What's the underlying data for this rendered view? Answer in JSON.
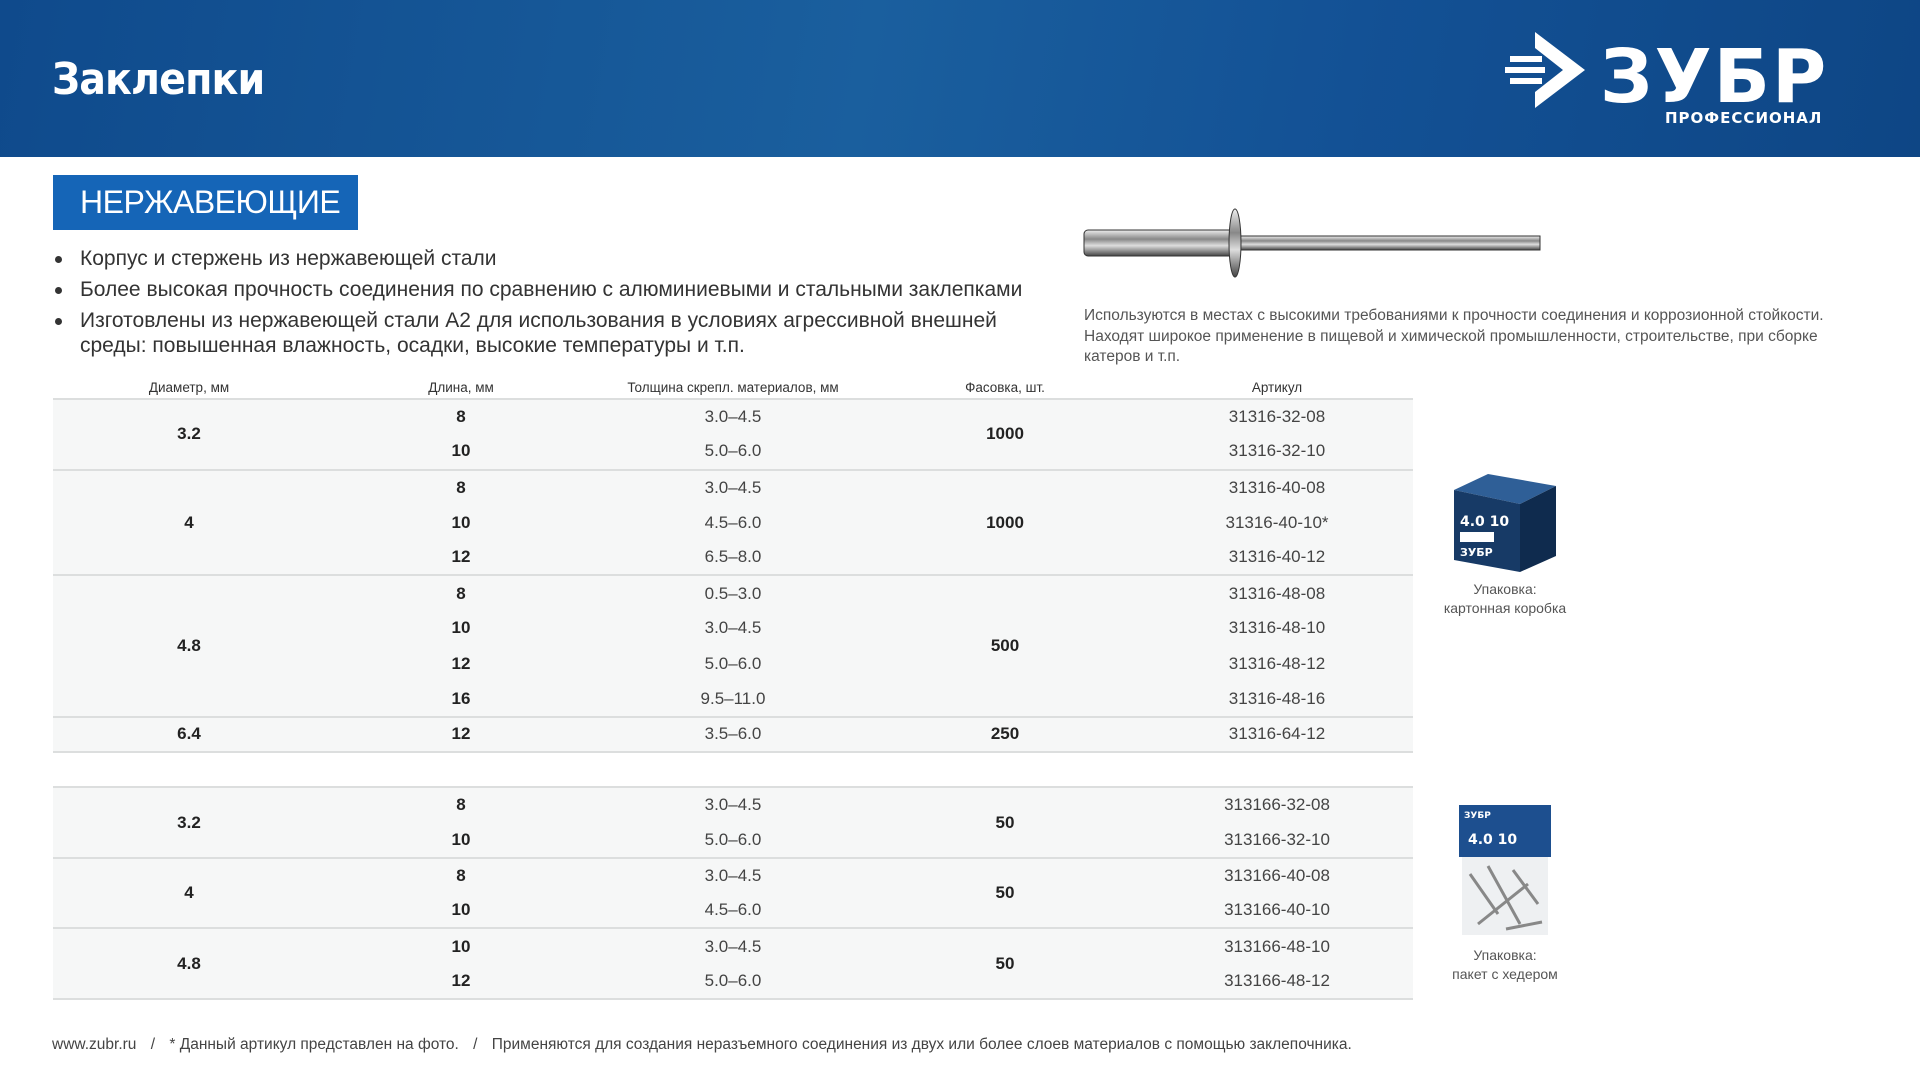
{
  "header": {
    "title": "Заклепки",
    "logo_text": "ЗУБР",
    "logo_subtitle": "ПРОФЕССИОНАЛ"
  },
  "section": {
    "badge": "НЕРЖАВЕЮЩИЕ",
    "bullets": [
      "Корпус и стержень из нержавеющей стали",
      "Более высокая прочность соединения по сравнению с алюминиевыми и стальными заклепками",
      "Изготовлены из нержавеющей стали А2 для использования в условиях агрессивной внешней среды: повышенная влажность, осадки, высокие температуры и т.п."
    ],
    "description": "Используются в местах с высокими требованиями к прочности соединения и коррозионной стойкости. Находят широкое применение в пищевой и химической промышленности, строительстве, при сборке катеров и т.п."
  },
  "table": {
    "headers": [
      "Диаметр, мм",
      "Длина, мм",
      "Толщина скрепл. материалов, мм",
      "Фасовка, шт.",
      "Артикул"
    ],
    "groups": [
      {
        "diameter": "3.2",
        "pack": "1000",
        "rows": [
          [
            "8",
            "3.0–4.5",
            "31316-32-08"
          ],
          [
            "10",
            "5.0–6.0",
            "31316-32-10"
          ]
        ]
      },
      {
        "diameter": "4",
        "pack": "1000",
        "rows": [
          [
            "8",
            "3.0–4.5",
            "31316-40-08"
          ],
          [
            "10",
            "4.5–6.0",
            "31316-40-10*"
          ],
          [
            "12",
            "6.5–8.0",
            "31316-40-12"
          ]
        ]
      },
      {
        "diameter": "4.8",
        "pack": "500",
        "rows": [
          [
            "8",
            "0.5–3.0",
            "31316-48-08"
          ],
          [
            "10",
            "3.0–4.5",
            "31316-48-10"
          ],
          [
            "12",
            "5.0–6.0",
            "31316-48-12"
          ],
          [
            "16",
            "9.5–11.0",
            "31316-48-16"
          ]
        ]
      },
      {
        "diameter": "6.4",
        "pack": "250",
        "rows": [
          [
            "12",
            "3.5–6.0",
            "31316-64-12"
          ]
        ]
      },
      {
        "blank": true
      },
      {
        "diameter": "3.2",
        "pack": "50",
        "rows": [
          [
            "8",
            "3.0–4.5",
            "313166-32-08"
          ],
          [
            "10",
            "5.0–6.0",
            "313166-32-10"
          ]
        ]
      },
      {
        "diameter": "4",
        "pack": "50",
        "rows": [
          [
            "8",
            "3.0–4.5",
            "313166-40-08"
          ],
          [
            "10",
            "4.5–6.0",
            "313166-40-10"
          ]
        ]
      },
      {
        "diameter": "4.8",
        "pack": "50",
        "rows": [
          [
            "10",
            "3.0–4.5",
            "313166-48-10"
          ],
          [
            "12",
            "5.0–6.0",
            "313166-48-12"
          ]
        ]
      }
    ]
  },
  "packaging": [
    {
      "line1": "Упаковка:",
      "line2": "картонная коробка",
      "box_text": "4.0 10"
    },
    {
      "line1": "Упаковка:",
      "line2": "пакет с хедером",
      "box_text": "4.0 10"
    }
  ],
  "footer": {
    "site": "www.zubr.ru",
    "note": "* Данный артикул представлен на фото.",
    "usage": "Применяются для создания неразъемного соединения из двух или более слоев материалов с помощью заклепочника.",
    "sep": "/"
  },
  "colors": {
    "header": "#135195",
    "accent": "#1565b7"
  }
}
